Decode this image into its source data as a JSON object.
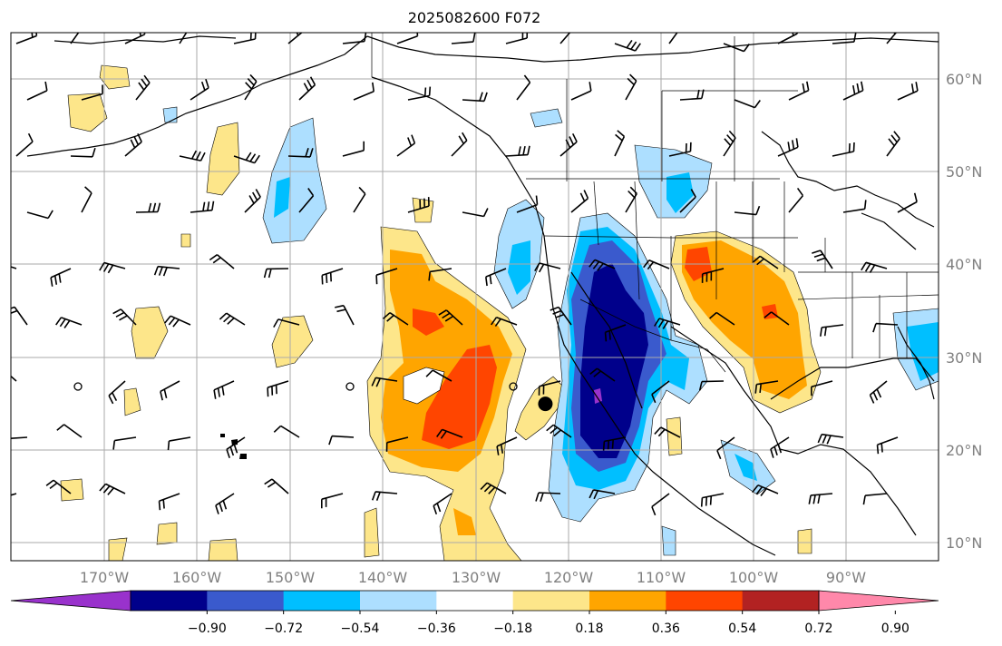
{
  "title": "2025082600 F072",
  "axes": {
    "lat_labels": [
      "60°N",
      "50°N",
      "40°N",
      "30°N",
      "20°N",
      "10°N"
    ],
    "lon_labels": [
      "170°W",
      "160°W",
      "150°W",
      "140°W",
      "130°W",
      "120°W",
      "110°W",
      "100°W",
      "90°W"
    ]
  },
  "colorbar": {
    "colors": [
      "#9932CC",
      "#00008B",
      "#3A5ACD",
      "#00BFFF",
      "#ADDFFF",
      "#FFFFFF",
      "#FDE68A",
      "#FFA500",
      "#FF4500",
      "#B22222",
      "#FF88AA"
    ],
    "levels": [
      -0.9,
      -0.72,
      -0.54,
      -0.36,
      -0.18,
      0.18,
      0.36,
      0.54,
      0.72,
      0.9
    ],
    "tick_labels": [
      "−0.90",
      "−0.72",
      "−0.54",
      "−0.36",
      "−0.18",
      "0.18",
      "0.36",
      "0.54",
      "0.72",
      "0.90"
    ]
  },
  "marker": {
    "lon": -122.5,
    "lat": 25
  }
}
